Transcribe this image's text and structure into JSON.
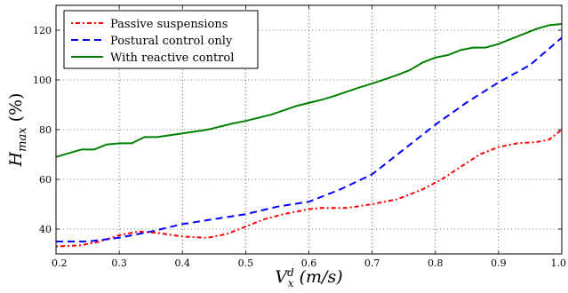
{
  "chart_data": {
    "type": "line",
    "xlabel": "V_x^d (m/s)",
    "ylabel": "H_max (%)",
    "xlim": [
      0.2,
      1.0
    ],
    "ylim": [
      30,
      130
    ],
    "xticks": [
      "0.2",
      "0.3",
      "0.4",
      "0.5",
      "0.6",
      "0.7",
      "0.8",
      "0.9",
      "1.0"
    ],
    "yticks": [
      "40",
      "60",
      "80",
      "100",
      "120"
    ],
    "grid": true,
    "legend_position": "top-left",
    "series": [
      {
        "name": "Passive suspensions",
        "color": "#ff0000",
        "style": "dashdot",
        "points": [
          [
            0.2,
            33
          ],
          [
            0.24,
            33.5
          ],
          [
            0.27,
            35
          ],
          [
            0.3,
            37.5
          ],
          [
            0.33,
            39
          ],
          [
            0.36,
            38.5
          ],
          [
            0.4,
            37
          ],
          [
            0.44,
            36.5
          ],
          [
            0.47,
            38
          ],
          [
            0.5,
            41
          ],
          [
            0.53,
            44
          ],
          [
            0.56,
            46
          ],
          [
            0.6,
            48
          ],
          [
            0.62,
            48.5
          ],
          [
            0.66,
            48.5
          ],
          [
            0.7,
            50
          ],
          [
            0.74,
            52
          ],
          [
            0.78,
            56
          ],
          [
            0.81,
            60
          ],
          [
            0.84,
            65
          ],
          [
            0.87,
            70
          ],
          [
            0.9,
            73
          ],
          [
            0.93,
            74.5
          ],
          [
            0.96,
            75
          ],
          [
            0.98,
            76
          ],
          [
            1.0,
            80
          ]
        ]
      },
      {
        "name": "Postural control only",
        "color": "#0000ff",
        "style": "dashed",
        "points": [
          [
            0.2,
            35
          ],
          [
            0.25,
            35
          ],
          [
            0.3,
            36.5
          ],
          [
            0.35,
            39
          ],
          [
            0.4,
            42
          ],
          [
            0.45,
            44
          ],
          [
            0.5,
            46
          ],
          [
            0.55,
            49
          ],
          [
            0.6,
            51
          ],
          [
            0.65,
            56
          ],
          [
            0.7,
            62
          ],
          [
            0.75,
            72
          ],
          [
            0.8,
            82
          ],
          [
            0.85,
            91
          ],
          [
            0.9,
            99
          ],
          [
            0.95,
            106
          ],
          [
            1.0,
            117
          ]
        ]
      },
      {
        "name": "With reactive control",
        "color": "#008000",
        "style": "solid",
        "points": [
          [
            0.2,
            69
          ],
          [
            0.22,
            70.5
          ],
          [
            0.24,
            72
          ],
          [
            0.26,
            72
          ],
          [
            0.28,
            74
          ],
          [
            0.3,
            74.5
          ],
          [
            0.32,
            74.5
          ],
          [
            0.34,
            77
          ],
          [
            0.36,
            77
          ],
          [
            0.4,
            78.5
          ],
          [
            0.44,
            80
          ],
          [
            0.48,
            82.5
          ],
          [
            0.5,
            83.5
          ],
          [
            0.54,
            86
          ],
          [
            0.58,
            89.5
          ],
          [
            0.62,
            92
          ],
          [
            0.64,
            93.5
          ],
          [
            0.68,
            97
          ],
          [
            0.7,
            98.5
          ],
          [
            0.74,
            102
          ],
          [
            0.76,
            104
          ],
          [
            0.78,
            107
          ],
          [
            0.8,
            109
          ],
          [
            0.82,
            110
          ],
          [
            0.84,
            112
          ],
          [
            0.86,
            113
          ],
          [
            0.88,
            113
          ],
          [
            0.9,
            114.5
          ],
          [
            0.92,
            116.5
          ],
          [
            0.94,
            118.5
          ],
          [
            0.96,
            120.5
          ],
          [
            0.98,
            122
          ],
          [
            1.0,
            122.5
          ]
        ]
      }
    ]
  }
}
